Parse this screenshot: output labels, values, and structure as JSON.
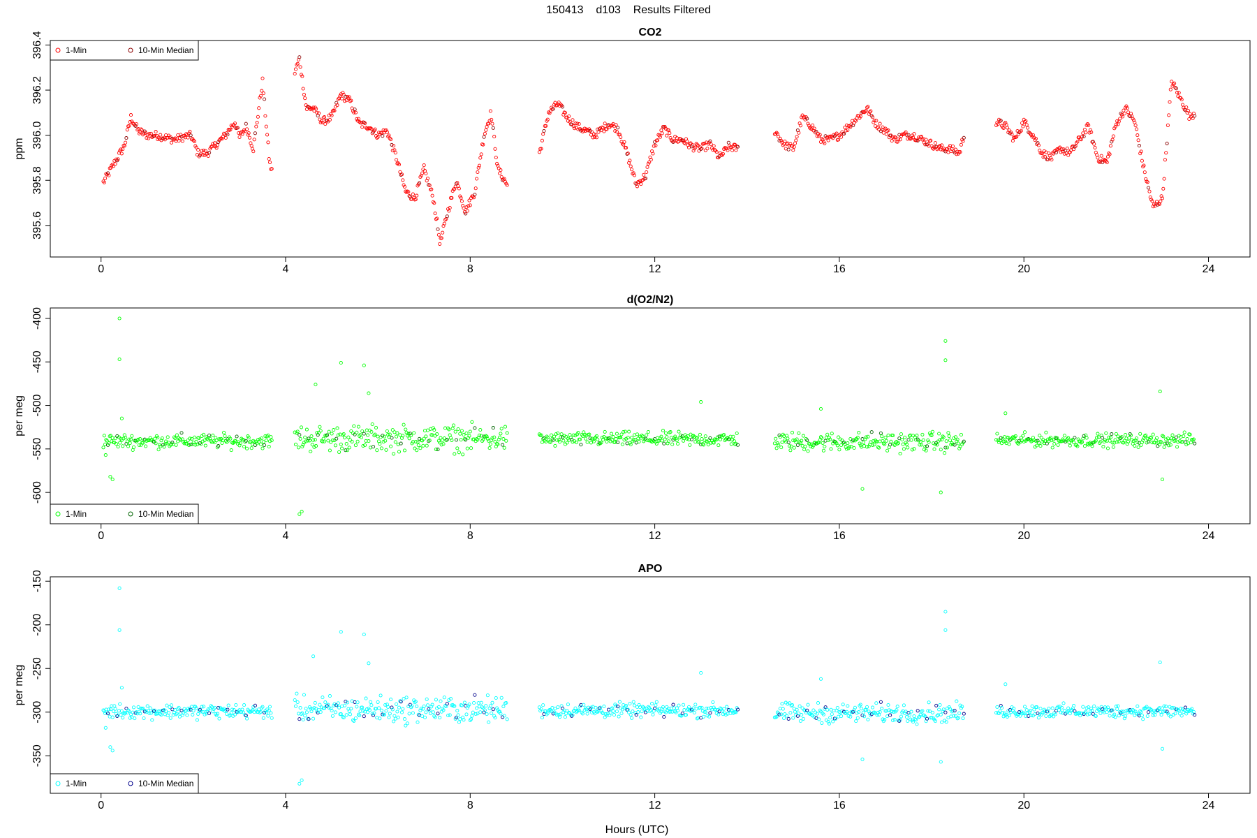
{
  "figure": {
    "title": "150413    d103    Results Filtered",
    "xlabel": "Hours (UTC)"
  },
  "chart_data": [
    {
      "type": "scatter",
      "title": "CO2",
      "ylabel": "ppm",
      "xlabel": "",
      "xlim": [
        -1.1,
        24.9
      ],
      "ylim": [
        395.46,
        396.42
      ],
      "xticks": [
        "0",
        "4",
        "8",
        "12",
        "16",
        "20",
        "24"
      ],
      "yticks": [
        "395.6",
        "395.8",
        "396.0",
        "396.2",
        "396.4"
      ],
      "legend": {
        "position": "top-left",
        "entries": [
          "1-Min",
          "10-Min Median"
        ]
      },
      "colors": {
        "one_min": "#ff0000",
        "median": "#8b0000"
      },
      "grid": false,
      "segments": [
        {
          "start": 0.05,
          "end": 3.7,
          "x": [
            0.05,
            0.3,
            0.5,
            0.65,
            0.8,
            1.0,
            1.2,
            1.4,
            1.6,
            1.75,
            1.95,
            2.1,
            2.3,
            2.5,
            2.7,
            2.9,
            3.0,
            3.15,
            3.3,
            3.5,
            3.65,
            3.7
          ],
          "y": [
            395.79,
            395.88,
            395.95,
            396.08,
            396.02,
            396.0,
            396.0,
            395.99,
            395.98,
            395.99,
            396.0,
            395.92,
            395.92,
            395.96,
            396.0,
            396.06,
            395.99,
            396.04,
            395.94,
            396.24,
            395.88,
            395.84
          ]
        },
        {
          "start": 4.2,
          "end": 8.8,
          "x": [
            4.2,
            4.3,
            4.45,
            4.6,
            4.8,
            5.0,
            5.2,
            5.4,
            5.6,
            5.8,
            6.0,
            6.2,
            6.4,
            6.6,
            6.8,
            7.0,
            7.2,
            7.35,
            7.5,
            7.7,
            7.9,
            8.1,
            8.3,
            8.45,
            8.6,
            8.8
          ],
          "y": [
            396.28,
            396.34,
            396.12,
            396.12,
            396.06,
            396.08,
            396.18,
            396.15,
            396.05,
            396.04,
            396.0,
            396.02,
            395.9,
            395.75,
            395.72,
            395.85,
            395.72,
            395.52,
            395.65,
            395.8,
            395.66,
            395.75,
            396.0,
            396.1,
            395.85,
            395.78
          ]
        },
        {
          "start": 9.5,
          "end": 13.8,
          "x": [
            9.5,
            9.7,
            9.9,
            10.1,
            10.3,
            10.5,
            10.7,
            11.0,
            11.2,
            11.4,
            11.6,
            11.8,
            12.0,
            12.2,
            12.4,
            12.6,
            12.8,
            13.0,
            13.2,
            13.4,
            13.6,
            13.8
          ],
          "y": [
            395.92,
            396.1,
            396.14,
            396.08,
            396.04,
            396.02,
            396.0,
            396.05,
            396.03,
            395.92,
            395.78,
            395.82,
            395.96,
            396.03,
            395.98,
            395.98,
            395.95,
            395.94,
            395.96,
            395.9,
            395.95,
            395.94
          ]
        },
        {
          "start": 14.6,
          "end": 18.7,
          "x": [
            14.6,
            14.8,
            15.0,
            15.2,
            15.4,
            15.6,
            15.8,
            16.0,
            16.2,
            16.4,
            16.6,
            16.8,
            17.0,
            17.2,
            17.4,
            17.6,
            17.8,
            18.0,
            18.2,
            18.4,
            18.6,
            18.7
          ],
          "y": [
            396.02,
            395.96,
            395.94,
            396.08,
            396.04,
            395.98,
            395.98,
            396.0,
            396.04,
            396.08,
            396.12,
            396.05,
            396.02,
            395.98,
            396.0,
            396.0,
            395.98,
            395.96,
            395.94,
            395.94,
            395.92,
            396.0
          ]
        },
        {
          "start": 19.4,
          "end": 23.7,
          "x": [
            19.4,
            19.6,
            19.8,
            20.0,
            20.2,
            20.4,
            20.6,
            20.8,
            21.0,
            21.2,
            21.4,
            21.6,
            21.8,
            22.0,
            22.2,
            22.4,
            22.6,
            22.8,
            23.0,
            23.2,
            23.4,
            23.6,
            23.7
          ],
          "y": [
            396.06,
            396.04,
            395.98,
            396.06,
            396.0,
            395.92,
            395.9,
            395.94,
            395.92,
            395.98,
            396.04,
            395.9,
            395.88,
            396.05,
            396.12,
            396.06,
            395.85,
            395.68,
            395.72,
            396.24,
            396.16,
            396.08,
            396.1
          ]
        }
      ]
    },
    {
      "type": "scatter",
      "title": "d(O2/N2)",
      "ylabel": "per meg",
      "xlabel": "",
      "xlim": [
        -1.1,
        24.9
      ],
      "ylim": [
        -636,
        -388
      ],
      "xticks": [
        "0",
        "4",
        "8",
        "12",
        "16",
        "20",
        "24"
      ],
      "yticks": [
        "-400",
        "-450",
        "-500",
        "-550",
        "-600"
      ],
      "legend": {
        "position": "bottom-left",
        "entries": [
          "1-Min",
          "10-Min Median"
        ]
      },
      "colors": {
        "one_min": "#00ff00",
        "median": "#006400"
      },
      "grid": false,
      "segments": [
        {
          "start": 0.05,
          "end": 3.7,
          "base": -541,
          "spread": 12
        },
        {
          "start": 4.2,
          "end": 8.8,
          "base": -538,
          "spread": 22
        },
        {
          "start": 9.5,
          "end": 13.8,
          "base": -539,
          "spread": 12
        },
        {
          "start": 14.6,
          "end": 18.7,
          "base": -542,
          "spread": 16
        },
        {
          "start": 19.4,
          "end": 23.7,
          "base": -540,
          "spread": 11
        }
      ],
      "outliers": {
        "x": [
          0.1,
          0.2,
          0.25,
          0.4,
          0.4,
          0.45,
          4.3,
          4.35,
          4.65,
          5.2,
          5.7,
          5.8,
          13.0,
          15.6,
          16.5,
          18.3,
          18.3,
          18.2,
          19.6,
          22.95,
          23.0
        ],
        "y": [
          -557,
          -582,
          -585,
          -400,
          -447,
          -515,
          -625,
          -622,
          -476,
          -451,
          -454,
          -486,
          -496,
          -504,
          -596,
          -426,
          -448,
          -600,
          -509,
          -484,
          -585
        ]
      }
    },
    {
      "type": "scatter",
      "title": "APO",
      "ylabel": "per meg",
      "xlabel": "Hours (UTC)",
      "xlim": [
        -1.1,
        24.9
      ],
      "ylim": [
        -393,
        -145
      ],
      "xticks": [
        "0",
        "4",
        "8",
        "12",
        "16",
        "20",
        "24"
      ],
      "yticks": [
        "-150",
        "-200",
        "-250",
        "-300",
        "-350"
      ],
      "legend": {
        "position": "bottom-left",
        "entries": [
          "1-Min",
          "10-Min Median"
        ]
      },
      "colors": {
        "one_min": "#00ffff",
        "median": "#00008b"
      },
      "grid": false,
      "segments": [
        {
          "start": 0.05,
          "end": 3.7,
          "base": -299,
          "spread": 12
        },
        {
          "start": 4.2,
          "end": 8.8,
          "base": -297,
          "spread": 22
        },
        {
          "start": 9.5,
          "end": 13.8,
          "base": -298,
          "spread": 12
        },
        {
          "start": 14.6,
          "end": 18.7,
          "base": -301,
          "spread": 16
        },
        {
          "start": 19.4,
          "end": 23.7,
          "base": -299,
          "spread": 11
        }
      ],
      "outliers": {
        "x": [
          0.1,
          0.2,
          0.25,
          0.4,
          0.4,
          0.45,
          4.3,
          4.35,
          4.6,
          5.2,
          5.7,
          5.8,
          13.0,
          15.6,
          16.5,
          18.3,
          18.3,
          18.2,
          19.6,
          22.95,
          23.0
        ],
        "y": [
          -318,
          -340,
          -344,
          -158,
          -206,
          -272,
          -382,
          -378,
          -236,
          -208,
          -211,
          -244,
          -255,
          -262,
          -354,
          -185,
          -206,
          -357,
          -268,
          -243,
          -342
        ]
      }
    }
  ]
}
